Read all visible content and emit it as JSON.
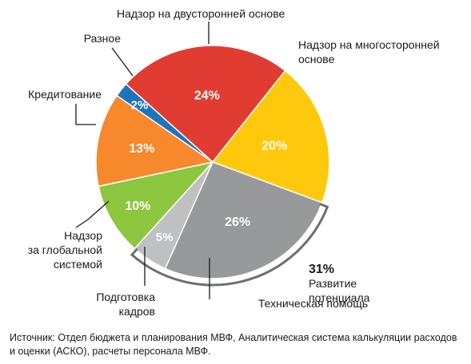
{
  "chart_data": {
    "type": "pie",
    "slices": [
      {
        "label": "Надзор на двусторонней основе",
        "value": 24,
        "value_label": "24%",
        "color": "#e03c31"
      },
      {
        "label": "Надзор на многосторонней основе",
        "value": 20,
        "value_label": "20%",
        "color": "#fec90c"
      },
      {
        "label": "Техническая помощь",
        "value": 26,
        "value_label": "26%",
        "color": "#98999b"
      },
      {
        "label": "Подготовка кадров",
        "value": 5,
        "value_label": "5%",
        "color": "#bfc0c2"
      },
      {
        "label": "Надзор за глобальной системой",
        "value": 10,
        "value_label": "10%",
        "color": "#8dc63f"
      },
      {
        "label": "Кредитование",
        "value": 13,
        "value_label": "13%",
        "color": "#f7882b"
      },
      {
        "label": "Разное",
        "value": 2,
        "value_label": "2%",
        "color": "#1c75bc"
      }
    ],
    "group_annotation": {
      "value_label": "31%",
      "label": "Развитие потенциала",
      "members": [
        "Техническая помощь",
        "Подготовка кадров"
      ]
    }
  },
  "source_note": "Источник: Отдел бюджета и планирования МВФ, Аналитическая система калькуляции расходов и оценки (АСКО), расчеты персонала МВФ."
}
